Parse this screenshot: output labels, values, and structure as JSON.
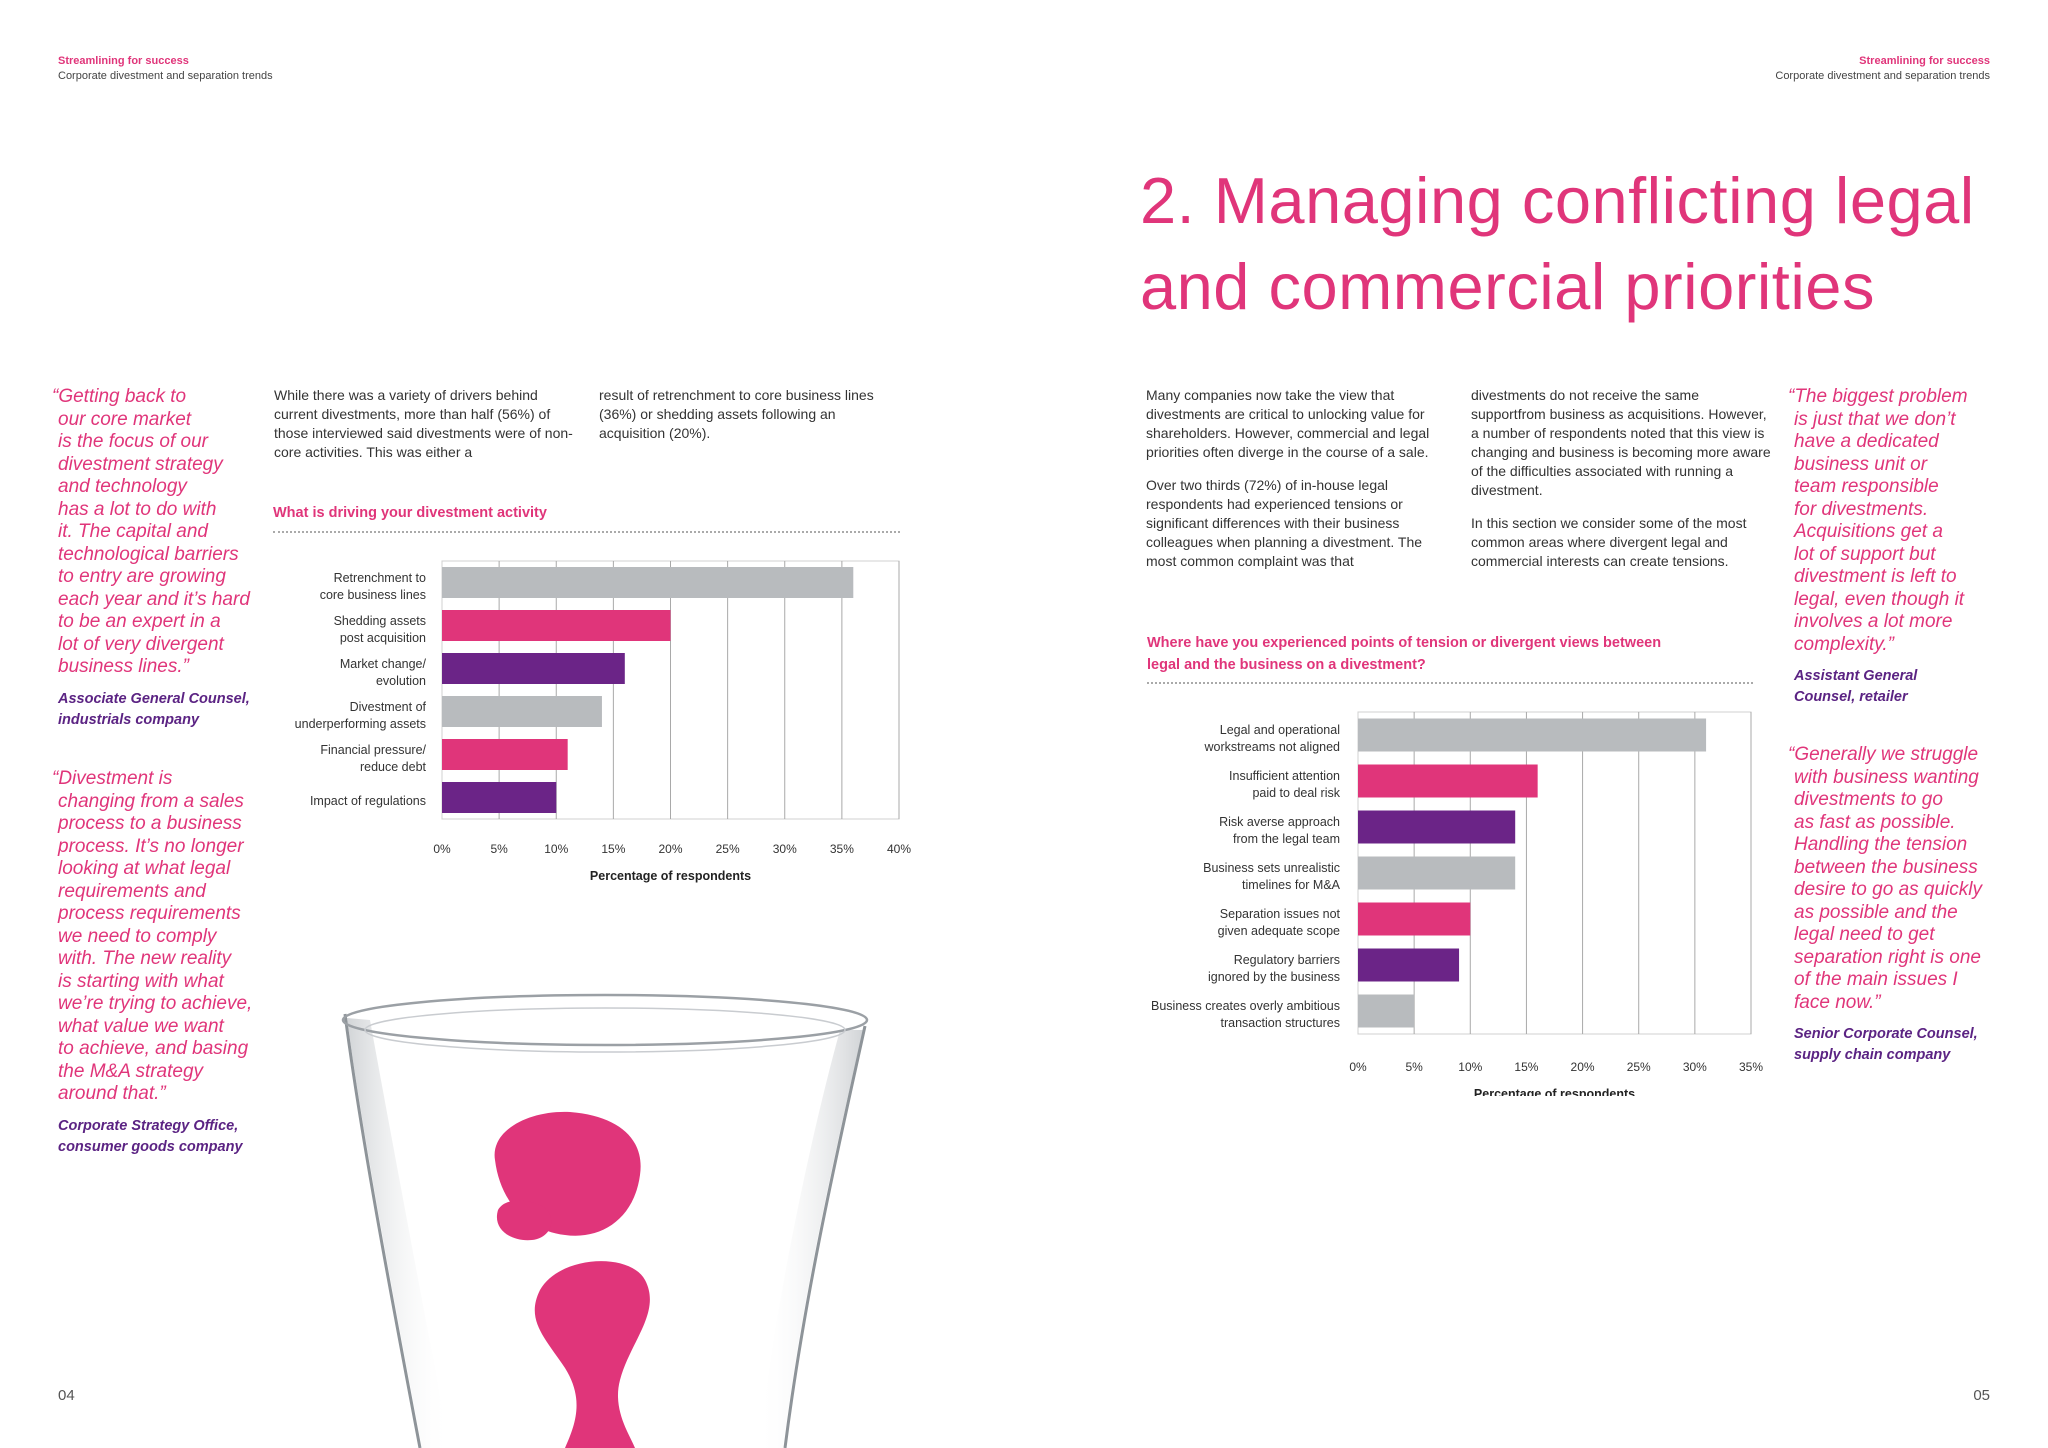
{
  "header_left": {
    "title": "Streamlining for success",
    "subtitle": "Corporate divestment and separation trends"
  },
  "header_right": {
    "title": "Streamlining for success",
    "subtitle": "Corporate divestment and separation trends"
  },
  "left_page": {
    "quote1": {
      "lines": [
        "“Getting back to",
        "our core market",
        "is the focus of our",
        "divestment strategy",
        "and technology",
        "has a lot to do with",
        "it. The capital and",
        "technological barriers",
        "to entry are growing",
        "each year and it’s hard",
        "to be an expert in a",
        "lot of very divergent",
        "business lines.”"
      ],
      "attribution_line1": "Associate General Counsel,",
      "attribution_line2": "industrials company"
    },
    "quote2": {
      "lines": [
        "“Divestment is",
        "changing from a sales",
        "process to a business",
        "process. It’s no longer",
        "looking at what legal",
        "requirements and",
        "process requirements",
        "we need to comply",
        "with. The new reality",
        "is starting with what",
        "we’re trying to achieve,",
        "what value we want",
        "to achieve, and basing",
        "the M&A strategy",
        "around that.”"
      ],
      "attribution_line1": "Corporate Strategy Office,",
      "attribution_line2": "consumer goods company"
    },
    "body_col1": "While there was a variety of drivers behind current divestments, more than half (56%) of those interviewed said divestments were of non-core activities. This was either a",
    "body_col2": "result of retrenchment to core business lines (36%) or shedding assets following an acquisition (20%).",
    "page_number": "04"
  },
  "right_page": {
    "title_line1": "2. Managing conflicting legal",
    "title_line2": "and commercial priorities",
    "body_col1_p1": "Many companies now take the view that divestments are critical to unlocking value for shareholders. However, commercial and legal priorities often diverge in the course of a sale.",
    "body_col1_p2": "Over two thirds (72%) of in-house legal respondents had experienced tensions or significant differences with their business colleagues when planning a divestment. The most common complaint was that",
    "body_col2_p1": "divestments do not receive the same supportfrom business as acquisitions. However, a number of respondents noted that this view is changing and business is becoming more aware of the difficulties associated with running a divestment.",
    "body_col2_p2": "In this section we consider some of the most common areas where divergent legal and commercial interests can create tensions.",
    "quote1": {
      "lines": [
        "“The biggest problem",
        "is just that we don’t",
        "have a dedicated",
        "business unit or",
        "team responsible",
        "for divestments.",
        "Acquisitions get a",
        "lot of support but",
        "divestment is left to",
        "legal, even though it",
        "involves a lot more",
        "complexity.”"
      ],
      "attribution_line1": "Assistant General",
      "attribution_line2": "Counsel, retailer"
    },
    "quote2": {
      "lines": [
        "“Generally we struggle",
        "with business wanting",
        "divestments to go",
        "as fast as possible.",
        "Handling the tension",
        "between the business",
        "desire to go as quickly",
        "as possible and the",
        "legal need to get",
        "separation right is one",
        "of the main issues I",
        "face now.”"
      ],
      "attribution_line1": "Senior Corporate Counsel,",
      "attribution_line2": "supply chain company"
    },
    "page_number": "05"
  },
  "colors": {
    "accent": "#e0357a",
    "purple": "#6b2487",
    "grey": "#b8bbbe",
    "attribution": "#5b2383"
  },
  "chart_data": [
    {
      "type": "bar",
      "orientation": "horizontal",
      "title": "What is driving your divestment activity",
      "categories": [
        [
          "Retrenchment to",
          "core business lines"
        ],
        [
          "Shedding assets",
          "post acquisition"
        ],
        [
          "Market change/",
          "evolution"
        ],
        [
          "Divestment of",
          "underperforming assets"
        ],
        [
          "Financial pressure/",
          "reduce debt"
        ],
        [
          "Impact of regulations"
        ]
      ],
      "values": [
        36,
        20,
        16,
        14,
        11,
        10
      ],
      "bar_colors": [
        "#b8bbbe",
        "#e0357a",
        "#6b2487",
        "#b8bbbe",
        "#e0357a",
        "#6b2487"
      ],
      "xlim": [
        0,
        40
      ],
      "xticks": [
        "0%",
        "5%",
        "10%",
        "15%",
        "20%",
        "25%",
        "30%",
        "35%",
        "40%"
      ],
      "xlabel": "Percentage of respondents",
      "grid": true
    },
    {
      "type": "bar",
      "orientation": "horizontal",
      "title": "Where have you experienced points of tension or divergent views between legal and the business on a divestment?",
      "title_line1": "Where have you experienced points of tension or divergent views between",
      "title_line2": "legal and the business on a divestment?",
      "categories": [
        [
          "Legal and operational",
          "workstreams not aligned"
        ],
        [
          "Insufficient attention",
          "paid to deal risk"
        ],
        [
          "Risk averse approach",
          "from the legal team"
        ],
        [
          "Business sets unrealistic",
          "timelines for M&A"
        ],
        [
          "Separation issues not",
          "given adequate scope"
        ],
        [
          "Regulatory barriers",
          "ignored by the business"
        ],
        [
          "Business creates overly ambitious",
          "transaction structures"
        ]
      ],
      "values": [
        31,
        16,
        14,
        14,
        10,
        9,
        5
      ],
      "bar_colors": [
        "#b8bbbe",
        "#e0357a",
        "#6b2487",
        "#b8bbbe",
        "#e0357a",
        "#6b2487",
        "#b8bbbe"
      ],
      "xlim": [
        0,
        35
      ],
      "xticks": [
        "0%",
        "5%",
        "10%",
        "15%",
        "20%",
        "25%",
        "30%",
        "35%"
      ],
      "xlabel": "Percentage of respondents",
      "grid": true
    }
  ]
}
